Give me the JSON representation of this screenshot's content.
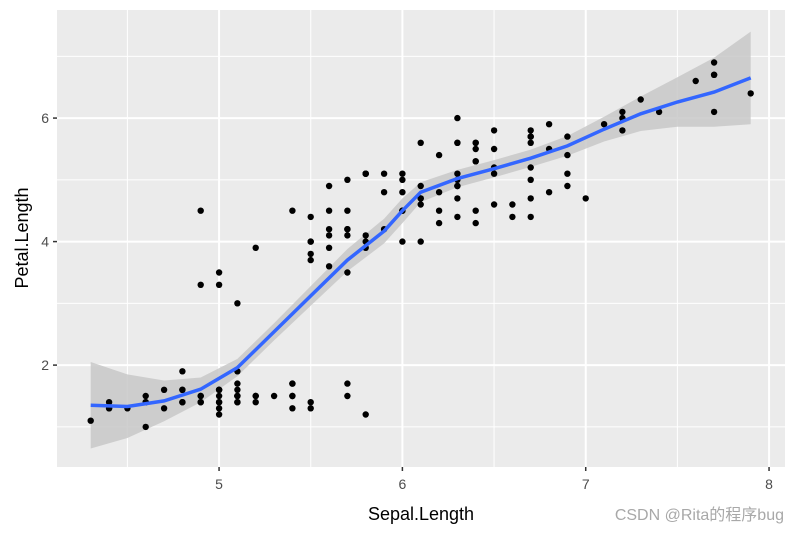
{
  "chart_data": {
    "type": "scatter",
    "title": "",
    "xlabel": "Sepal.Length",
    "ylabel": "Petal.Length",
    "xlim": [
      4.116,
      8.087
    ],
    "ylim": [
      0.35,
      7.75
    ],
    "x_ticks": [
      5,
      6,
      7,
      8
    ],
    "x_tick_labels": [
      "5",
      "6",
      "7",
      "8"
    ],
    "y_ticks": [
      2,
      4,
      6
    ],
    "y_tick_labels": [
      "2",
      "4",
      "6"
    ],
    "x_minor": [
      4.5,
      5.5,
      6.5,
      7.5
    ],
    "y_minor": [
      1,
      3,
      5,
      7
    ],
    "grid": true,
    "legend": "none",
    "colors": {
      "panel_bg": "#ebebeb",
      "grid": "#ffffff",
      "points": "#000000",
      "smooth_line": "#3366ff",
      "ribbon": "#c8c8c8"
    },
    "points": [
      [
        5.1,
        1.4
      ],
      [
        4.9,
        1.4
      ],
      [
        4.7,
        1.3
      ],
      [
        4.6,
        1.5
      ],
      [
        5.0,
        1.4
      ],
      [
        5.4,
        1.7
      ],
      [
        4.6,
        1.4
      ],
      [
        5.0,
        1.5
      ],
      [
        4.4,
        1.4
      ],
      [
        4.9,
        1.5
      ],
      [
        5.4,
        1.5
      ],
      [
        4.8,
        1.6
      ],
      [
        4.8,
        1.4
      ],
      [
        4.3,
        1.1
      ],
      [
        5.8,
        1.2
      ],
      [
        5.7,
        1.5
      ],
      [
        5.4,
        1.3
      ],
      [
        5.1,
        1.4
      ],
      [
        5.7,
        1.7
      ],
      [
        5.1,
        1.5
      ],
      [
        5.4,
        1.7
      ],
      [
        5.1,
        1.5
      ],
      [
        4.6,
        1.0
      ],
      [
        5.1,
        1.7
      ],
      [
        4.8,
        1.9
      ],
      [
        5.0,
        1.6
      ],
      [
        5.0,
        1.6
      ],
      [
        5.2,
        1.5
      ],
      [
        5.2,
        1.4
      ],
      [
        4.7,
        1.6
      ],
      [
        4.8,
        1.6
      ],
      [
        5.4,
        1.5
      ],
      [
        5.2,
        1.5
      ],
      [
        5.5,
        1.4
      ],
      [
        4.9,
        1.5
      ],
      [
        5.0,
        1.2
      ],
      [
        5.5,
        1.3
      ],
      [
        4.9,
        1.4
      ],
      [
        4.4,
        1.3
      ],
      [
        5.1,
        1.5
      ],
      [
        5.0,
        1.3
      ],
      [
        4.5,
        1.3
      ],
      [
        4.4,
        1.3
      ],
      [
        5.0,
        1.6
      ],
      [
        5.1,
        1.9
      ],
      [
        4.8,
        1.4
      ],
      [
        5.1,
        1.6
      ],
      [
        4.6,
        1.4
      ],
      [
        5.3,
        1.5
      ],
      [
        5.0,
        1.4
      ],
      [
        7.0,
        4.7
      ],
      [
        6.4,
        4.5
      ],
      [
        6.9,
        4.9
      ],
      [
        5.5,
        4.0
      ],
      [
        6.5,
        4.6
      ],
      [
        5.7,
        4.5
      ],
      [
        6.3,
        4.7
      ],
      [
        4.9,
        3.3
      ],
      [
        6.6,
        4.6
      ],
      [
        5.2,
        3.9
      ],
      [
        5.0,
        3.5
      ],
      [
        5.9,
        4.2
      ],
      [
        6.0,
        4.0
      ],
      [
        6.1,
        4.7
      ],
      [
        5.6,
        3.6
      ],
      [
        6.7,
        4.4
      ],
      [
        5.6,
        4.5
      ],
      [
        5.8,
        4.1
      ],
      [
        6.2,
        4.5
      ],
      [
        5.6,
        3.9
      ],
      [
        5.9,
        4.8
      ],
      [
        6.1,
        4.0
      ],
      [
        6.3,
        4.9
      ],
      [
        6.1,
        4.7
      ],
      [
        6.4,
        4.3
      ],
      [
        6.6,
        4.4
      ],
      [
        6.8,
        4.8
      ],
      [
        6.7,
        5.0
      ],
      [
        6.0,
        4.5
      ],
      [
        5.7,
        3.5
      ],
      [
        5.5,
        3.8
      ],
      [
        5.5,
        3.7
      ],
      [
        5.8,
        3.9
      ],
      [
        6.0,
        5.1
      ],
      [
        5.4,
        4.5
      ],
      [
        6.0,
        4.5
      ],
      [
        6.7,
        4.7
      ],
      [
        6.3,
        4.4
      ],
      [
        5.6,
        4.1
      ],
      [
        5.5,
        4.0
      ],
      [
        5.5,
        4.4
      ],
      [
        6.1,
        4.6
      ],
      [
        5.8,
        4.0
      ],
      [
        5.0,
        3.3
      ],
      [
        5.6,
        4.2
      ],
      [
        5.7,
        4.2
      ],
      [
        5.7,
        4.2
      ],
      [
        6.2,
        4.3
      ],
      [
        5.1,
        3.0
      ],
      [
        5.7,
        4.1
      ],
      [
        6.3,
        6.0
      ],
      [
        5.8,
        5.1
      ],
      [
        7.1,
        5.9
      ],
      [
        6.3,
        5.6
      ],
      [
        6.5,
        5.8
      ],
      [
        7.6,
        6.6
      ],
      [
        4.9,
        4.5
      ],
      [
        7.3,
        6.3
      ],
      [
        6.7,
        5.8
      ],
      [
        7.2,
        6.1
      ],
      [
        6.5,
        5.1
      ],
      [
        6.4,
        5.3
      ],
      [
        6.8,
        5.5
      ],
      [
        5.7,
        5.0
      ],
      [
        5.8,
        5.1
      ],
      [
        6.4,
        5.3
      ],
      [
        6.5,
        5.5
      ],
      [
        7.7,
        6.7
      ],
      [
        7.7,
        6.9
      ],
      [
        6.0,
        5.0
      ],
      [
        6.9,
        5.7
      ],
      [
        5.6,
        4.9
      ],
      [
        7.7,
        6.7
      ],
      [
        6.3,
        4.9
      ],
      [
        6.7,
        5.7
      ],
      [
        7.2,
        6.0
      ],
      [
        6.2,
        4.8
      ],
      [
        6.1,
        4.9
      ],
      [
        6.4,
        5.6
      ],
      [
        7.2,
        5.8
      ],
      [
        7.4,
        6.1
      ],
      [
        7.9,
        6.4
      ],
      [
        6.4,
        5.6
      ],
      [
        6.3,
        5.1
      ],
      [
        6.1,
        5.6
      ],
      [
        7.7,
        6.1
      ],
      [
        6.3,
        5.6
      ],
      [
        6.4,
        5.5
      ],
      [
        6.0,
        4.8
      ],
      [
        6.9,
        5.4
      ],
      [
        6.7,
        5.6
      ],
      [
        6.9,
        5.1
      ],
      [
        5.8,
        5.1
      ],
      [
        6.8,
        5.9
      ],
      [
        6.7,
        5.7
      ],
      [
        6.7,
        5.2
      ],
      [
        6.3,
        5.0
      ],
      [
        6.5,
        5.2
      ],
      [
        6.2,
        5.4
      ],
      [
        5.9,
        5.1
      ]
    ],
    "smooth": {
      "method": "loess",
      "x": [
        4.3,
        4.5,
        4.7,
        4.9,
        5.1,
        5.3,
        5.5,
        5.7,
        5.9,
        6.0,
        6.1,
        6.3,
        6.5,
        6.7,
        6.9,
        7.1,
        7.3,
        7.5,
        7.7,
        7.9
      ],
      "y": [
        1.35,
        1.33,
        1.42,
        1.61,
        1.96,
        2.54,
        3.12,
        3.7,
        4.17,
        4.5,
        4.8,
        5.02,
        5.18,
        5.35,
        5.55,
        5.82,
        6.07,
        6.26,
        6.42,
        6.65
      ],
      "upper": [
        2.05,
        1.85,
        1.75,
        1.8,
        2.1,
        2.68,
        3.28,
        3.88,
        4.37,
        4.7,
        4.96,
        5.16,
        5.32,
        5.49,
        5.71,
        6.02,
        6.35,
        6.66,
        6.98,
        7.4
      ],
      "lower": [
        0.65,
        0.82,
        1.09,
        1.4,
        1.82,
        2.4,
        2.96,
        3.52,
        3.97,
        4.3,
        4.64,
        4.88,
        5.04,
        5.21,
        5.39,
        5.62,
        5.79,
        5.86,
        5.86,
        5.9
      ]
    }
  },
  "axes": {
    "x_title": "Sepal.Length",
    "y_title": "Petal.Length"
  },
  "watermark": "CSDN @Rita的程序bug"
}
